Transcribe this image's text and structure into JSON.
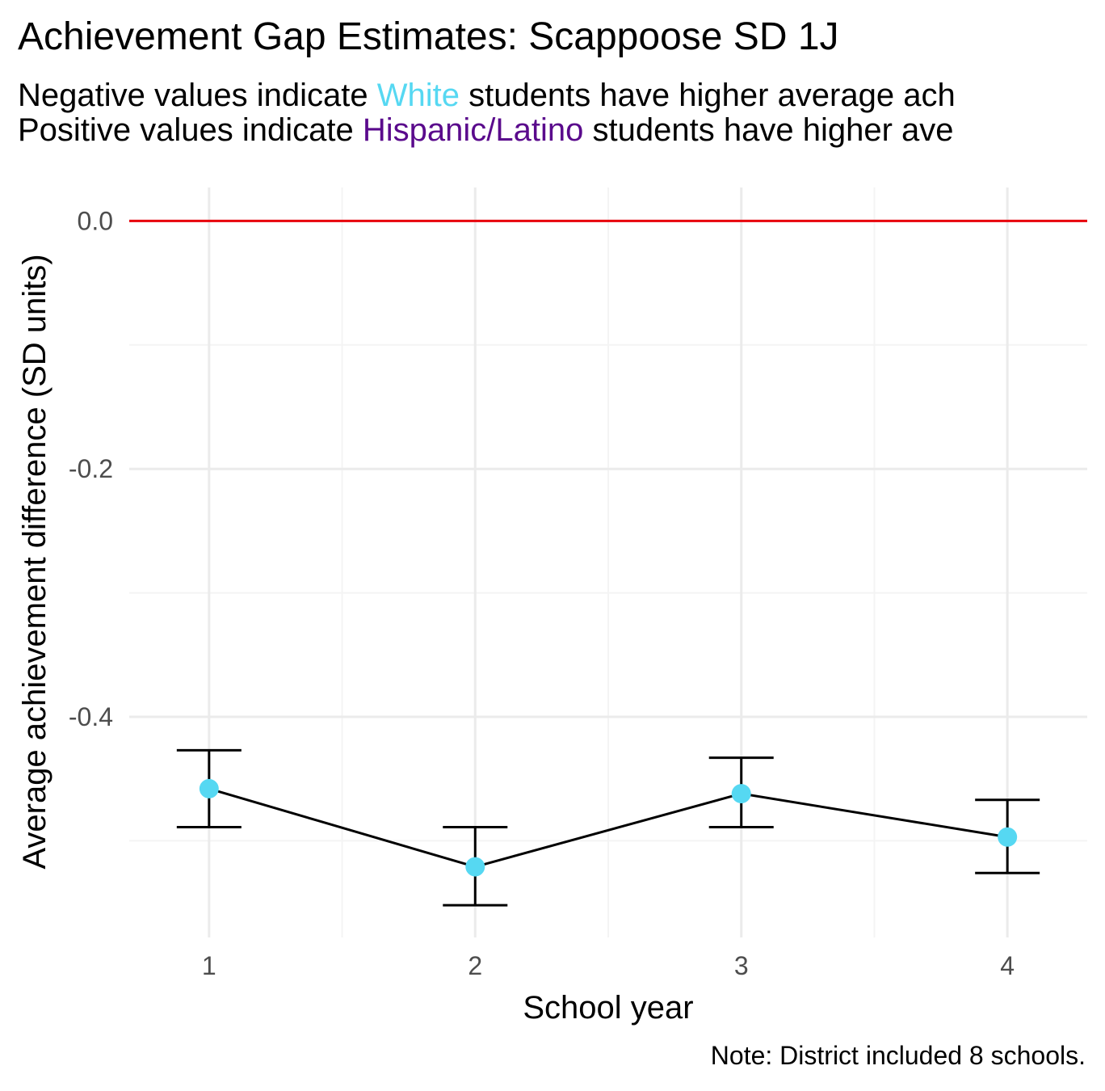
{
  "header": {
    "title": "Achievement Gap Estimates: Scappoose SD 1J",
    "subtitle_line1": {
      "before": "Negative values indicate ",
      "highlight": "White",
      "after": " students have higher average ach"
    },
    "subtitle_line2": {
      "before": "Positive values indicate ",
      "highlight": "Hispanic/Latino",
      "after": " students have higher ave"
    }
  },
  "caption": "Note: District included 8 schools.",
  "colors": {
    "white_group": "#56d8f2",
    "hispanic_group": "#5a0a8c",
    "reference_line": "#e8000b",
    "point": "#56d8f2",
    "line": "#000000",
    "grid_major": "#ebebeb",
    "grid_minor": "#f4f4f4"
  },
  "chart_data": {
    "type": "line",
    "xlabel": "School year",
    "ylabel": "Average achievement difference (SD units)",
    "categories": [
      "1",
      "2",
      "3",
      "4"
    ],
    "x": [
      1,
      2,
      3,
      4
    ],
    "values": [
      -0.458,
      -0.521,
      -0.462,
      -0.497
    ],
    "error_lower": [
      -0.489,
      -0.552,
      -0.489,
      -0.526
    ],
    "error_upper": [
      -0.427,
      -0.489,
      -0.433,
      -0.467
    ],
    "yticks": [
      0.0,
      -0.2,
      -0.4
    ],
    "ytick_labels": [
      "0.0",
      "-0.2",
      "-0.4"
    ],
    "ylim": [
      -0.578,
      0.027
    ],
    "xlim": [
      0.7,
      4.3
    ],
    "reference_line_y": 0,
    "grid": true
  }
}
